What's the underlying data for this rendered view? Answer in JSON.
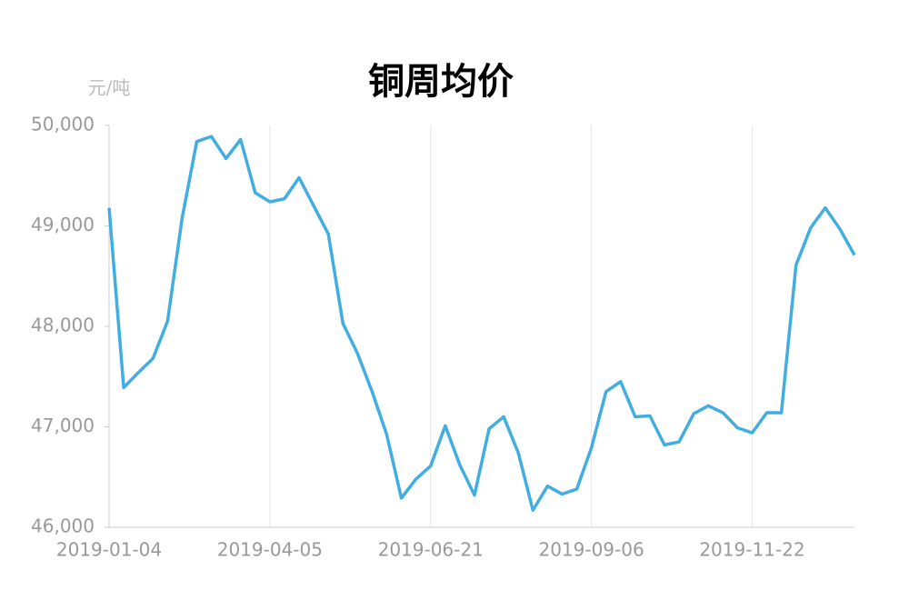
{
  "chart_data": {
    "type": "line",
    "title": "铜周均价",
    "y_label": "元/吨",
    "categories": [
      "2019-01-04",
      null,
      null,
      null,
      null,
      null,
      null,
      null,
      null,
      null,
      null,
      "2019-04-05",
      null,
      null,
      null,
      null,
      null,
      null,
      null,
      null,
      null,
      null,
      "2019-06-21",
      null,
      null,
      null,
      null,
      null,
      null,
      null,
      null,
      null,
      null,
      "2019-09-06",
      null,
      null,
      null,
      null,
      null,
      null,
      null,
      null,
      null,
      null,
      "2019-11-22",
      null,
      null,
      null,
      null,
      null,
      null,
      null
    ],
    "values": [
      49180,
      47390,
      47540,
      47680,
      48050,
      49080,
      49840,
      49890,
      49670,
      49860,
      49330,
      49240,
      49270,
      49480,
      49200,
      48920,
      48030,
      47730,
      47350,
      46920,
      46290,
      46480,
      46610,
      47010,
      46620,
      46320,
      46980,
      47100,
      46740,
      46170,
      46410,
      46330,
      46380,
      46790,
      47350,
      47450,
      47100,
      47110,
      46820,
      46850,
      47130,
      47210,
      47140,
      46990,
      46940,
      47140,
      47140,
      48610,
      48980,
      49180,
      48970,
      48710
    ],
    "color": "#41ade0",
    "ylim": [
      46000,
      50000
    ],
    "yticks": [
      {
        "value": 46000,
        "label": "46,000"
      },
      {
        "value": 47000,
        "label": "47,000"
      },
      {
        "value": 48000,
        "label": "48,000"
      },
      {
        "value": 49000,
        "label": "49,000"
      },
      {
        "value": 50000,
        "label": "50,000"
      }
    ],
    "grid": true
  }
}
